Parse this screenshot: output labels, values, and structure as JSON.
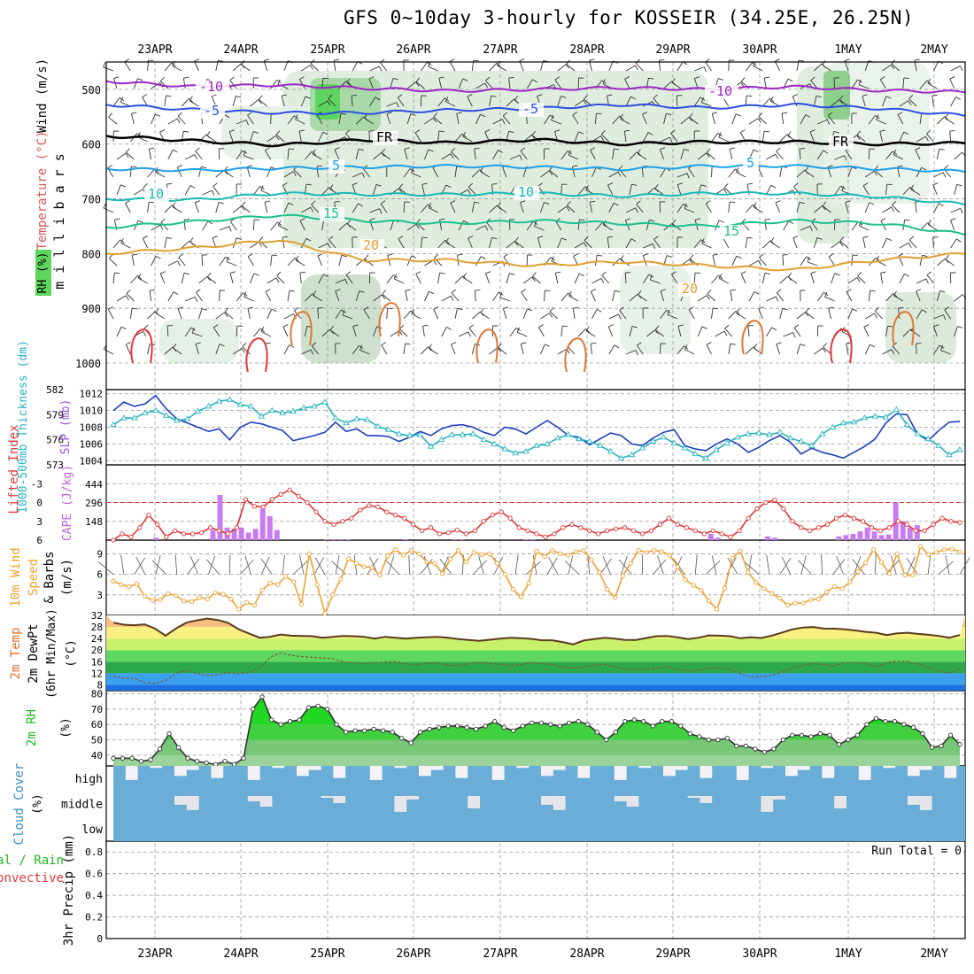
{
  "title": "GFS 0~10day 3-hourly for KOSSEIR (34.25E, 26.25N)",
  "date_labels": [
    "23APR",
    "24APR",
    "25APR",
    "26APR",
    "27APR",
    "28APR",
    "29APR",
    "30APR",
    "1MAY",
    "2MAY"
  ],
  "colors": {
    "grid": "#9a9a9a",
    "rh_green": "#5cd65c",
    "slp": "#1f3fbf",
    "thickness": "#27b3c2",
    "lifted_index": "#e03838",
    "cape": "#c77cf0",
    "wind_speed": "#f0a030",
    "temp_fill": "#f08c28",
    "dewpt_line": "#7a5a3a",
    "rh2m_fill": "#22d822",
    "cloud_blue": "#6aaed8",
    "cloud_white": "#f4f2f6"
  },
  "chart_data": [
    {
      "type": "heatmap",
      "panel": "upper-air",
      "ylabel": "m i l l i b a r s",
      "side_labels": [
        "Wind (m/s)",
        "Temperature (°C)",
        "RH (%)"
      ],
      "ylim": [
        1000,
        450
      ],
      "y_ticks": [
        500,
        600,
        700,
        800,
        900,
        1000
      ],
      "contours": [
        {
          "label": "-10",
          "level": -10,
          "color": "#9b27c4",
          "pressure": [
            485,
            495,
            492,
            498,
            503,
            500,
            497,
            500,
            495,
            502,
            505
          ]
        },
        {
          "label": "-5",
          "level": -5,
          "color": "#2b4fe0",
          "pressure": [
            528,
            537,
            543,
            543,
            538,
            535,
            528,
            534,
            528,
            535,
            548
          ]
        },
        {
          "label": "FR",
          "level": 0,
          "color": "#000000",
          "pressure": [
            585,
            594,
            602,
            592,
            598,
            592,
            600,
            596,
            596,
            600,
            598
          ]
        },
        {
          "label": "5",
          "level": 5,
          "color": "#1ea0e8",
          "pressure": [
            645,
            648,
            644,
            642,
            640,
            642,
            646,
            640,
            640,
            645,
            650
          ]
        },
        {
          "label": "10",
          "level": 10,
          "color": "#1ab8b8",
          "pressure": [
            700,
            702,
            690,
            692,
            692,
            690,
            695,
            690,
            690,
            696,
            710
          ]
        },
        {
          "label": "15",
          "level": 15,
          "color": "#1cc08c",
          "pressure": [
            752,
            742,
            730,
            740,
            745,
            740,
            745,
            750,
            740,
            745,
            765
          ]
        },
        {
          "label": "20",
          "level": 20,
          "color": "#e0a030",
          "pressure": [
            800,
            790,
            775,
            812,
            812,
            822,
            815,
            822,
            830,
            812,
            800
          ]
        }
      ]
    },
    {
      "type": "line",
      "panel": "slp-thickness",
      "ylabel": "SLP (mb)",
      "ylabel2": "1000-500mb Thickness (dm)",
      "ylim": [
        1003.5,
        1012.5
      ],
      "ylim2": [
        573,
        582
      ],
      "y_ticks": [
        1004,
        1006,
        1008,
        1010,
        1012
      ],
      "y2_ticks": [
        573,
        576,
        579,
        582
      ],
      "x": [
        0,
        1,
        2,
        3,
        4,
        5,
        6,
        7,
        8,
        9,
        10,
        11,
        12,
        13,
        14,
        15,
        16,
        17,
        18,
        19,
        20,
        21,
        22,
        23,
        24,
        25,
        26,
        27,
        28,
        29,
        30,
        31,
        32,
        33,
        34,
        35,
        36,
        37,
        38,
        39,
        40,
        41,
        42,
        43,
        44,
        45,
        46,
        47,
        48,
        49,
        50,
        51,
        52,
        53,
        54,
        55,
        56,
        57,
        58,
        59,
        60,
        61,
        62,
        63,
        64,
        65,
        66,
        67,
        68,
        69,
        70,
        71,
        72,
        73,
        74,
        75,
        76,
        77,
        78,
        79,
        80
      ],
      "series": [
        {
          "name": "SLP (mb)",
          "values": [
            1010.0,
            1011.0,
            1010.5,
            1010.8,
            1011.8,
            1010.2,
            1009.0,
            1008.5,
            1008.0,
            1007.5,
            1007.8,
            1006.5,
            1008.0,
            1008.6,
            1008.4,
            1008.0,
            1007.6,
            1006.4,
            1006.7,
            1007.0,
            1007.4,
            1008.6,
            1007.5,
            1007.8,
            1007.0,
            1007.0,
            1006.9,
            1006.3,
            1006.8,
            1007.5,
            1007.0,
            1007.8,
            1008.2,
            1008.3,
            1008.0,
            1007.4,
            1007.0,
            1008.0,
            1007.8,
            1007.2,
            1008.0,
            1008.8,
            1008.0,
            1007.0,
            1006.8,
            1005.9,
            1006.6,
            1007.3,
            1007.0,
            1006.0,
            1005.8,
            1006.7,
            1007.4,
            1007.7,
            1005.8,
            1005.4,
            1005.2,
            1006.0,
            1006.6,
            1006.0,
            1005.0,
            1005.6,
            1006.4,
            1007.0,
            1006.2,
            1004.8,
            1005.5,
            1005.0,
            1004.7,
            1004.3,
            1005.0,
            1005.7,
            1006.6,
            1008.5,
            1009.6,
            1009.5,
            1007.2,
            1006.4,
            1007.6,
            1008.6,
            1008.7
          ]
        },
        {
          "name": "1000-500mb Thickness (dm)",
          "values": [
            577.8,
            578.6,
            578.6,
            579.2,
            579.5,
            578.9,
            578.3,
            578.5,
            579.4,
            580.0,
            580.6,
            580.8,
            580.2,
            580.0,
            578.8,
            579.5,
            579.2,
            579.4,
            579.8,
            580.0,
            580.5,
            578.6,
            578.0,
            578.5,
            578.4,
            577.6,
            577.2,
            576.7,
            576.5,
            576.6,
            575.2,
            576.0,
            576.6,
            576.6,
            576.7,
            576.0,
            575.5,
            574.9,
            574.4,
            574.6,
            575.3,
            575.5,
            576.2,
            576.6,
            576.1,
            575.8,
            575.3,
            574.6,
            573.8,
            574.2,
            575.0,
            575.8,
            576.3,
            575.6,
            575.0,
            574.3,
            573.8,
            574.8,
            575.6,
            576.3,
            576.7,
            576.8,
            576.6,
            576.9,
            576.2,
            575.8,
            575.3,
            576.7,
            577.5,
            578.0,
            578.1,
            578.6,
            578.8,
            578.7,
            579.6,
            577.8,
            576.7,
            576.1,
            575.3,
            574.2,
            574.8
          ]
        }
      ]
    },
    {
      "type": "bar",
      "panel": "cape-lifted-index",
      "ylabel": "CAPE (J/kg)",
      "ylabel2": "Lifted Index",
      "cape_ticks": [
        148,
        296,
        444
      ],
      "li_ticks": [
        -3,
        0,
        3,
        6
      ],
      "cape_ylim": [
        0,
        600
      ],
      "li_ylim": [
        6,
        -6
      ],
      "cape_values": [
        10,
        0,
        0,
        0,
        0,
        0,
        20,
        0,
        0,
        0,
        0,
        0,
        0,
        0,
        80,
        360,
        100,
        90,
        100,
        60,
        90,
        250,
        190,
        80,
        0,
        0,
        0,
        0,
        0,
        0,
        5,
        5,
        5,
        5,
        0,
        0,
        0,
        0,
        0,
        0,
        0,
        5,
        0,
        0,
        0,
        0,
        0,
        0,
        5,
        5,
        0,
        0,
        0,
        0,
        0,
        0,
        0,
        0,
        5,
        5,
        0,
        0,
        0,
        0,
        0,
        0,
        0,
        0,
        0,
        0,
        0,
        0,
        0,
        0,
        0,
        0,
        0,
        0,
        0,
        0,
        0,
        0,
        0,
        0,
        50,
        20,
        0,
        0,
        0,
        0,
        0,
        0,
        30,
        20,
        0,
        0,
        0,
        0,
        0,
        0,
        0,
        0,
        30,
        40,
        50,
        70,
        100,
        70,
        40,
        45,
        300,
        150,
        100,
        120,
        0,
        0,
        0,
        0,
        0,
        0
      ],
      "li_values": [
        6,
        5,
        5.5,
        4,
        2,
        3.5,
        5.5,
        4.5,
        5,
        5,
        4.8,
        4,
        4.5,
        5,
        4,
        -0.5,
        0.6,
        0.7,
        -0.5,
        -1.3,
        -2,
        -1,
        0,
        1.5,
        3,
        3.5,
        3,
        2.5,
        1.2,
        0.5,
        0.7,
        1.5,
        2,
        2.5,
        3.5,
        4.5,
        4,
        5,
        4.8,
        4.4,
        5,
        4.5,
        3,
        2,
        1.5,
        2.5,
        4,
        4.5,
        5,
        5.5,
        5,
        4,
        3.5,
        4,
        4.5,
        5,
        4.5,
        4.2,
        4,
        4.5,
        5,
        4.5,
        3.5,
        2.5,
        3.5,
        4,
        4.5,
        5,
        4.5,
        5,
        5.5,
        4.5,
        2.5,
        1,
        0,
        -0.4,
        1,
        3,
        4,
        4.5,
        4,
        3.5,
        2.5,
        2,
        2.5,
        3,
        4,
        4.5,
        4,
        3,
        3.5,
        4.5,
        4.5,
        3.5,
        2.5,
        3,
        3.2
      ]
    },
    {
      "type": "line",
      "panel": "10m-wind",
      "ylabel": "10m Wind Speed & Barbs (m/s)",
      "ylim": [
        0,
        11
      ],
      "y_ticks": [
        3,
        6,
        9
      ],
      "series": [
        {
          "name": "10m Wind Speed",
          "values": [
            5.0,
            4.5,
            4.2,
            4.6,
            2.8,
            2.2,
            2.3,
            3.2,
            2.9,
            2.1,
            2.0,
            2.6,
            2.4,
            3.3,
            3.1,
            2.4,
            0.9,
            1.9,
            1.5,
            3.7,
            4.7,
            4.5,
            5.7,
            4.9,
            1.6,
            9.0,
            4.5,
            0.3,
            3.0,
            5.3,
            8.3,
            7.6,
            7.1,
            7.0,
            5.9,
            8.7,
            9.6,
            8.8,
            9.5,
            9.0,
            7.8,
            7.6,
            6.1,
            8.2,
            9.5,
            7.8,
            9.2,
            8.9,
            9.0,
            7.6,
            6.0,
            3.8,
            2.7,
            4.7,
            9.4,
            8.6,
            9.5,
            9.0,
            8.8,
            9.3,
            9.5,
            8.1,
            6.3,
            3.8,
            2.6,
            5.8,
            7.6,
            9.5,
            9.2,
            9.5,
            9.3,
            8.8,
            7.1,
            5.2,
            4.4,
            3.7,
            2.1,
            0.9,
            4.0,
            8.4,
            9.4,
            6.3,
            4.8,
            3.9,
            3.2,
            2.5,
            1.5,
            1.8,
            1.8,
            2.3,
            2.4,
            3.4,
            4.2,
            3.9,
            4.9,
            6.4,
            7.7,
            9.6,
            7.8,
            6.1,
            9.0,
            5.9,
            5.9,
            10.1,
            8.9,
            9.2,
            9.6,
            9.7,
            9.3
          ]
        }
      ]
    },
    {
      "type": "area",
      "panel": "2m-temp",
      "ylabel": "2m Temp / 2m DewPt (6hr Min/Max) (°C)",
      "ylim": [
        6,
        32
      ],
      "y_ticks": [
        8,
        12,
        16,
        20,
        24,
        28,
        32
      ],
      "series": [
        {
          "name": "2m Temp",
          "values": [
            29.5,
            28.8,
            28.6,
            28.9,
            27.4,
            25.0,
            27.5,
            29.5,
            30.3,
            30.9,
            30.4,
            29.4,
            27.2,
            25.7,
            24.3,
            24.6,
            25.4,
            25.0,
            24.9,
            24.8,
            24.3,
            24.6,
            24.9,
            24.8,
            24.6,
            24.0,
            24.6,
            24.3,
            24.0,
            24.3,
            24.4,
            24.6,
            24.3,
            23.8,
            23.5,
            23.2,
            23.6,
            24.0,
            24.3,
            24.1,
            23.9,
            23.4,
            23.4,
            22.8,
            22.0,
            23.3,
            23.8,
            24.3,
            24.0,
            23.5,
            23.5,
            24.2,
            24.8,
            24.9,
            24.4,
            23.8,
            24.3,
            25.1,
            25.0,
            24.8,
            24.1,
            24.4,
            24.2,
            25.0,
            26.1,
            27.2,
            27.8,
            28.0,
            27.4,
            27.4,
            27.2,
            26.8,
            26.3,
            26.0,
            25.2,
            25.8,
            26.0,
            25.6,
            25.3,
            24.9,
            24.3,
            25.2
          ]
        },
        {
          "name": "2m DewPt",
          "values": [
            11.0,
            10.3,
            10.2,
            8.8,
            8.6,
            9.5,
            12.0,
            13.0,
            12.0,
            11.3,
            11.5,
            12.3,
            11.9,
            12.3,
            13.9,
            17.5,
            19.1,
            18.2,
            17.8,
            17.5,
            17.3,
            17.0,
            15.9,
            15.7,
            15.4,
            15.6,
            15.9,
            16.0,
            15.3,
            14.8,
            15.6,
            15.5,
            14.8,
            14.6,
            15.4,
            15.8,
            15.5,
            15.1,
            14.7,
            15.0,
            15.7,
            15.4,
            15.0,
            14.2,
            13.7,
            14.1,
            14.7,
            15.1,
            14.3,
            13.3,
            13.4,
            13.5,
            13.7,
            14.2,
            13.4,
            12.8,
            13.0,
            13.8,
            14.0,
            13.3,
            11.9,
            10.7,
            10.8,
            11.2,
            12.4,
            13.9,
            14.7,
            15.4,
            15.0,
            14.5,
            15.7,
            15.7,
            15.5,
            14.2,
            15.8,
            16.2,
            16.1,
            15.2,
            14.0,
            12.7,
            12.1,
            13.6
          ]
        }
      ]
    },
    {
      "type": "area",
      "panel": "2m-rh",
      "ylabel": "2m RH (%)",
      "ylim": [
        33,
        82
      ],
      "y_ticks": [
        40,
        50,
        60,
        70,
        80
      ],
      "series": [
        {
          "name": "2m RH",
          "values": [
            38,
            38,
            38,
            36,
            37,
            44,
            54,
            45,
            38,
            36,
            35,
            34,
            36,
            34,
            38,
            70,
            78,
            63,
            60,
            62,
            63,
            71,
            72,
            70,
            60,
            55,
            56,
            56,
            57,
            56,
            55,
            51,
            48,
            55,
            57,
            58,
            59,
            59,
            58,
            57,
            59,
            62,
            58,
            56,
            59,
            61,
            61,
            60,
            59,
            61,
            62,
            60,
            55,
            50,
            55,
            62,
            63,
            62,
            59,
            62,
            62,
            59,
            54,
            52,
            50,
            50,
            51,
            46,
            46,
            44,
            42,
            44,
            50,
            53,
            53,
            52,
            54,
            53,
            47,
            50,
            53,
            60,
            64,
            62,
            62,
            60,
            58,
            54,
            45,
            46,
            53,
            47
          ]
        }
      ]
    },
    {
      "type": "heatmap",
      "panel": "cloud-cover",
      "ylabel": "Cloud Cover (%)",
      "rows": [
        "high",
        "middle",
        "low"
      ]
    },
    {
      "type": "line",
      "panel": "precip",
      "ylabel": "3hr Precip (mm)",
      "side_labels": [
        "Total / Rain",
        "Convective"
      ],
      "ylim": [
        0,
        0.9
      ],
      "y_ticks": [
        0,
        0.2,
        0.4,
        0.6,
        0.8
      ],
      "annotation": "Run Total = 0",
      "series": []
    }
  ],
  "tick_text": {
    "upper": [
      "500",
      "600",
      "700",
      "800",
      "900",
      "1000"
    ],
    "slp": [
      "1004",
      "1006",
      "1008",
      "1010",
      "1012"
    ],
    "thick": [
      "573",
      "576",
      "579",
      "582"
    ],
    "li": [
      "-3",
      "0",
      "3",
      "6"
    ],
    "cape": [
      "148",
      "296",
      "444"
    ],
    "wind": [
      "3",
      "6",
      "9"
    ],
    "temp": [
      "8",
      "12",
      "16",
      "20",
      "24",
      "28",
      "32"
    ],
    "rh": [
      "40",
      "50",
      "60",
      "70",
      "80"
    ],
    "precip": [
      "0",
      "0.2",
      "0.4",
      "0.6",
      "0.8"
    ]
  },
  "contour_labels": [
    "-10",
    "-5",
    "FR",
    "5",
    "10",
    "15",
    "20",
    "-10",
    "-5",
    "FR",
    "5",
    "10",
    "15",
    "20"
  ]
}
